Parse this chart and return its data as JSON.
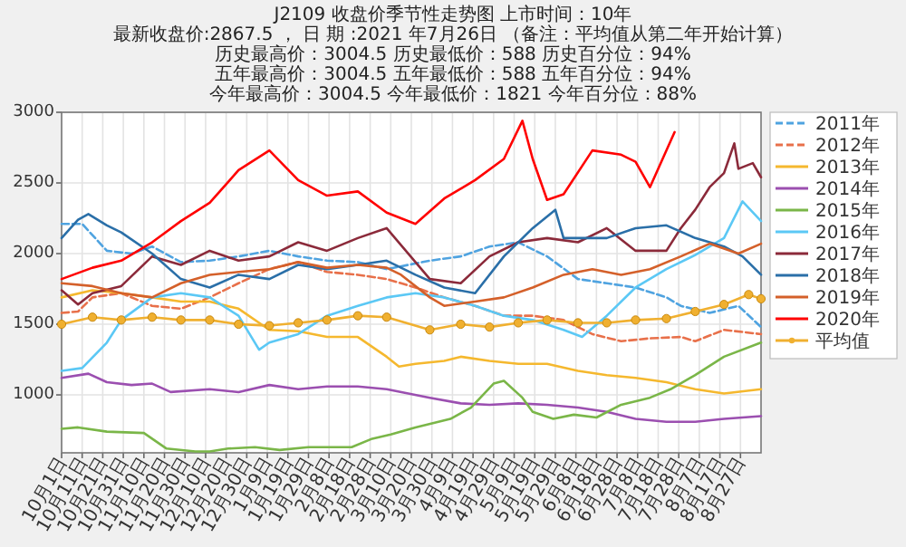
{
  "chart_data": {
    "type": "line",
    "title": "J2109   收盘价季节性走势图        上市时间：10年",
    "subtitle": "最新收盘价:2867.5 ， 日 期 :2021 年7月26日  （备注：平均值从第二年开始计算）",
    "annotations": [
      "历史最高价：3004.5 历史最低价：588 历史百分位：94%",
      "五年最高价：3004.5 五年最低价：588 五年百分位：94%",
      "今年最高价：3004.5 今年最低价：1821 今年百分位：88%"
    ],
    "xlim": [
      "2020-10-01",
      "2021-09-06"
    ],
    "xticks": [
      {
        "value": "2020-10-01",
        "label": "10月1日"
      },
      {
        "value": "2020-10-11",
        "label": "10月11日"
      },
      {
        "value": "2020-10-21",
        "label": "10月21日"
      },
      {
        "value": "2020-10-31",
        "label": "10月31日"
      },
      {
        "value": "2020-11-10",
        "label": "11月10日"
      },
      {
        "value": "2020-11-20",
        "label": "11月20日"
      },
      {
        "value": "2020-11-30",
        "label": "11月30日"
      },
      {
        "value": "2020-12-10",
        "label": "12月10日"
      },
      {
        "value": "2020-12-20",
        "label": "12月20日"
      },
      {
        "value": "2020-12-30",
        "label": "12月30日"
      },
      {
        "value": "2021-01-09",
        "label": "1月9日"
      },
      {
        "value": "2021-01-19",
        "label": "1月19日"
      },
      {
        "value": "2021-01-29",
        "label": "1月29日"
      },
      {
        "value": "2021-02-08",
        "label": "2月8日"
      },
      {
        "value": "2021-02-18",
        "label": "2月18日"
      },
      {
        "value": "2021-02-28",
        "label": "2月28日"
      },
      {
        "value": "2021-03-10",
        "label": "3月10日"
      },
      {
        "value": "2021-03-20",
        "label": "3月20日"
      },
      {
        "value": "2021-03-30",
        "label": "3月30日"
      },
      {
        "value": "2021-04-09",
        "label": "4月9日"
      },
      {
        "value": "2021-04-19",
        "label": "4月19日"
      },
      {
        "value": "2021-04-29",
        "label": "4月29日"
      },
      {
        "value": "2021-05-09",
        "label": "5月9日"
      },
      {
        "value": "2021-05-19",
        "label": "5月19日"
      },
      {
        "value": "2021-05-29",
        "label": "5月29日"
      },
      {
        "value": "2021-06-08",
        "label": "6月8日"
      },
      {
        "value": "2021-06-18",
        "label": "6月18日"
      },
      {
        "value": "2021-06-28",
        "label": "6月28日"
      },
      {
        "value": "2021-07-08",
        "label": "7月8日"
      },
      {
        "value": "2021-07-18",
        "label": "7月18日"
      },
      {
        "value": "2021-07-28",
        "label": "7月28日"
      },
      {
        "value": "2021-08-07",
        "label": "8月7日"
      },
      {
        "value": "2021-08-17",
        "label": "8月17日"
      },
      {
        "value": "2021-08-27",
        "label": "8月27日"
      }
    ],
    "ylim": [
      590,
      3000
    ],
    "yticks": [
      1000,
      1500,
      2000,
      2500,
      3000
    ],
    "grid": true,
    "legend": "right",
    "series": [
      {
        "name": "2011年",
        "color": "#4fa3e0",
        "line_style": "dashed",
        "x": [
          "2020-10-01",
          "2020-10-11",
          "2020-10-23",
          "2020-11-04",
          "2020-11-14",
          "2020-11-28",
          "2020-12-12",
          "2020-12-26",
          "2021-01-10",
          "2021-01-24",
          "2021-02-07",
          "2021-02-22",
          "2021-03-08",
          "2021-03-29",
          "2021-04-13",
          "2021-04-27",
          "2021-05-11",
          "2021-05-25",
          "2021-06-09",
          "2021-06-23",
          "2021-07-07",
          "2021-07-22",
          "2021-07-29",
          "2021-08-12",
          "2021-08-26",
          "2021-09-06"
        ],
        "values": [
          2210,
          2210,
          2020,
          2000,
          2050,
          1940,
          1950,
          1980,
          2020,
          1980,
          1950,
          1940,
          1890,
          1950,
          1980,
          2050,
          2080,
          1980,
          1820,
          1790,
          1760,
          1690,
          1630,
          1580,
          1630,
          1480
        ]
      },
      {
        "name": "2012年",
        "color": "#e8704a",
        "line_style": "dashed",
        "x": [
          "2020-10-01",
          "2020-10-09",
          "2020-10-16",
          "2020-10-30",
          "2020-11-14",
          "2020-11-28",
          "2020-12-12",
          "2020-12-26",
          "2021-01-10",
          "2021-01-24",
          "2021-02-07",
          "2021-02-22",
          "2021-03-08",
          "2021-03-22",
          "2021-04-05",
          "2021-04-20",
          "2021-05-04",
          "2021-05-18",
          "2021-06-02",
          "2021-06-16",
          "2021-06-30",
          "2021-07-14",
          "2021-07-29",
          "2021-08-05",
          "2021-08-19",
          "2021-09-06"
        ],
        "values": [
          1580,
          1590,
          1690,
          1720,
          1630,
          1610,
          1690,
          1790,
          1890,
          1940,
          1870,
          1850,
          1820,
          1760,
          1690,
          1630,
          1560,
          1560,
          1530,
          1430,
          1380,
          1400,
          1410,
          1380,
          1460,
          1430
        ]
      },
      {
        "name": "2013年",
        "color": "#f5b82e",
        "line_style": "solid",
        "x": [
          "2020-10-01",
          "2020-10-16",
          "2020-10-30",
          "2020-11-14",
          "2020-11-28",
          "2020-12-12",
          "2020-12-26",
          "2021-01-10",
          "2021-01-24",
          "2021-02-07",
          "2021-02-22",
          "2021-03-08",
          "2021-03-14",
          "2021-03-22",
          "2021-04-05",
          "2021-04-13",
          "2021-04-27",
          "2021-05-11",
          "2021-05-25",
          "2021-06-09",
          "2021-06-23",
          "2021-07-07",
          "2021-07-22",
          "2021-08-05",
          "2021-08-19",
          "2021-09-06"
        ],
        "values": [
          1690,
          1740,
          1720,
          1690,
          1660,
          1660,
          1610,
          1460,
          1450,
          1410,
          1410,
          1270,
          1200,
          1220,
          1240,
          1270,
          1240,
          1220,
          1220,
          1170,
          1140,
          1120,
          1090,
          1040,
          1010,
          1040
        ]
      },
      {
        "name": "2014年",
        "color": "#9b4fb0",
        "line_style": "solid",
        "x": [
          "2020-10-01",
          "2020-10-14",
          "2020-10-23",
          "2020-11-04",
          "2020-11-14",
          "2020-11-23",
          "2020-12-12",
          "2020-12-26",
          "2021-01-10",
          "2021-01-24",
          "2021-02-07",
          "2021-02-22",
          "2021-03-08",
          "2021-03-29",
          "2021-04-13",
          "2021-04-27",
          "2021-05-11",
          "2021-05-25",
          "2021-06-09",
          "2021-06-23",
          "2021-07-07",
          "2021-07-22",
          "2021-08-05",
          "2021-08-19",
          "2021-09-06"
        ],
        "values": [
          1120,
          1150,
          1090,
          1070,
          1080,
          1020,
          1040,
          1020,
          1070,
          1040,
          1060,
          1060,
          1040,
          980,
          940,
          930,
          940,
          930,
          910,
          880,
          830,
          810,
          810,
          830,
          850
        ]
      },
      {
        "name": "2015年",
        "color": "#7ab648",
        "line_style": "solid",
        "x": [
          "2020-10-01",
          "2020-10-09",
          "2020-10-23",
          "2020-11-10",
          "2020-11-21",
          "2020-12-05",
          "2020-12-12",
          "2020-12-21",
          "2021-01-03",
          "2021-01-15",
          "2021-01-29",
          "2021-02-19",
          "2021-03-01",
          "2021-03-10",
          "2021-03-22",
          "2021-04-08",
          "2021-04-18",
          "2021-04-29",
          "2021-05-04",
          "2021-05-13",
          "2021-05-18",
          "2021-05-28",
          "2021-06-07",
          "2021-06-18",
          "2021-06-30",
          "2021-07-14",
          "2021-07-24",
          "2021-08-05",
          "2021-08-19",
          "2021-09-06"
        ],
        "values": [
          760,
          770,
          740,
          730,
          620,
          600,
          600,
          620,
          630,
          610,
          630,
          630,
          690,
          720,
          770,
          830,
          910,
          1080,
          1100,
          980,
          880,
          830,
          860,
          840,
          930,
          980,
          1040,
          1140,
          1270,
          1370
        ]
      },
      {
        "name": "2016年",
        "color": "#5bc8f5",
        "line_style": "solid",
        "x": [
          "2020-10-01",
          "2020-10-11",
          "2020-10-23",
          "2020-10-30",
          "2020-11-14",
          "2020-11-28",
          "2020-12-12",
          "2020-12-26",
          "2021-01-05",
          "2021-01-10",
          "2021-01-24",
          "2021-02-07",
          "2021-02-22",
          "2021-03-08",
          "2021-03-22",
          "2021-04-05",
          "2021-04-20",
          "2021-05-04",
          "2021-05-18",
          "2021-06-02",
          "2021-06-11",
          "2021-06-23",
          "2021-07-07",
          "2021-07-22",
          "2021-08-05",
          "2021-08-19",
          "2021-08-28",
          "2021-09-06"
        ],
        "values": [
          1170,
          1190,
          1370,
          1530,
          1690,
          1720,
          1690,
          1560,
          1320,
          1370,
          1430,
          1560,
          1630,
          1690,
          1720,
          1690,
          1630,
          1560,
          1530,
          1460,
          1410,
          1560,
          1760,
          1890,
          1990,
          2110,
          2370,
          2230
        ]
      },
      {
        "name": "2017年",
        "color": "#8b2a3a",
        "line_style": "solid",
        "x": [
          "2020-10-01",
          "2020-10-09",
          "2020-10-16",
          "2020-10-30",
          "2020-11-14",
          "2020-11-28",
          "2020-12-12",
          "2020-12-26",
          "2021-01-10",
          "2021-01-24",
          "2021-02-07",
          "2021-02-22",
          "2021-03-08",
          "2021-03-29",
          "2021-04-13",
          "2021-04-27",
          "2021-05-11",
          "2021-05-25",
          "2021-06-09",
          "2021-06-23",
          "2021-07-07",
          "2021-07-22",
          "2021-07-29",
          "2021-08-05",
          "2021-08-12",
          "2021-08-19",
          "2021-08-24",
          "2021-08-26",
          "2021-09-02",
          "2021-09-06"
        ],
        "values": [
          1740,
          1640,
          1720,
          1770,
          1980,
          1920,
          2020,
          1950,
          1980,
          2080,
          2020,
          2110,
          2180,
          1820,
          1790,
          1980,
          2080,
          2110,
          2080,
          2180,
          2020,
          2020,
          2180,
          2310,
          2470,
          2570,
          2780,
          2600,
          2640,
          2540
        ]
      },
      {
        "name": "2018年",
        "color": "#2a6fa8",
        "line_style": "solid",
        "x": [
          "2020-10-01",
          "2020-10-09",
          "2020-10-14",
          "2020-10-23",
          "2020-10-30",
          "2020-11-14",
          "2020-11-28",
          "2020-12-12",
          "2020-12-26",
          "2021-01-10",
          "2021-01-24",
          "2021-02-07",
          "2021-02-22",
          "2021-03-08",
          "2021-03-22",
          "2021-04-05",
          "2021-04-20",
          "2021-05-04",
          "2021-05-18",
          "2021-05-29",
          "2021-06-02",
          "2021-06-23",
          "2021-07-07",
          "2021-07-22",
          "2021-08-05",
          "2021-08-19",
          "2021-08-28",
          "2021-09-06"
        ],
        "values": [
          2110,
          2240,
          2280,
          2200,
          2150,
          2000,
          1820,
          1760,
          1850,
          1820,
          1920,
          1890,
          1920,
          1950,
          1850,
          1760,
          1720,
          1980,
          2180,
          2310,
          2110,
          2110,
          2180,
          2200,
          2110,
          2050,
          1980,
          1850
        ]
      },
      {
        "name": "2019年",
        "color": "#d4602a",
        "line_style": "solid",
        "x": [
          "2020-10-01",
          "2020-10-16",
          "2020-10-30",
          "2020-11-14",
          "2020-11-28",
          "2020-12-12",
          "2020-12-26",
          "2021-01-10",
          "2021-01-24",
          "2021-02-07",
          "2021-02-22",
          "2021-03-08",
          "2021-03-15",
          "2021-03-29",
          "2021-04-05",
          "2021-04-20",
          "2021-05-04",
          "2021-05-18",
          "2021-06-02",
          "2021-06-16",
          "2021-06-30",
          "2021-07-14",
          "2021-07-29",
          "2021-08-12",
          "2021-08-26",
          "2021-09-06"
        ],
        "values": [
          1790,
          1770,
          1720,
          1690,
          1790,
          1850,
          1870,
          1890,
          1940,
          1900,
          1920,
          1900,
          1850,
          1690,
          1630,
          1660,
          1690,
          1760,
          1850,
          1890,
          1850,
          1890,
          1980,
          2070,
          2000,
          2070
        ]
      },
      {
        "name": "2020年",
        "color": "#ff0000",
        "line_style": "solid",
        "x": [
          "2020-10-01",
          "2020-10-16",
          "2020-10-30",
          "2020-11-14",
          "2020-11-28",
          "2020-12-12",
          "2020-12-26",
          "2021-01-10",
          "2021-01-24",
          "2021-02-07",
          "2021-02-22",
          "2021-03-08",
          "2021-03-22",
          "2021-04-05",
          "2021-04-20",
          "2021-05-04",
          "2021-05-13",
          "2021-05-18",
          "2021-05-25",
          "2021-06-02",
          "2021-06-16",
          "2021-06-30",
          "2021-07-07",
          "2021-07-14",
          "2021-07-26"
        ],
        "values": [
          1820,
          1900,
          1950,
          2080,
          2230,
          2360,
          2590,
          2730,
          2520,
          2410,
          2440,
          2290,
          2210,
          2390,
          2520,
          2670,
          2940,
          2670,
          2380,
          2420,
          2730,
          2700,
          2650,
          2470,
          2860
        ]
      },
      {
        "name": "平均值",
        "color": "#f0b030",
        "line_style": "solid",
        "marker": "circle",
        "x": [
          "2020-10-01",
          "2020-10-16",
          "2020-10-30",
          "2020-11-14",
          "2020-11-28",
          "2020-12-12",
          "2020-12-26",
          "2021-01-10",
          "2021-01-24",
          "2021-02-07",
          "2021-02-22",
          "2021-03-08",
          "2021-03-29",
          "2021-04-13",
          "2021-04-27",
          "2021-05-11",
          "2021-05-25",
          "2021-06-09",
          "2021-06-23",
          "2021-07-07",
          "2021-07-22",
          "2021-08-05",
          "2021-08-19",
          "2021-08-31",
          "2021-09-06"
        ],
        "values": [
          1500,
          1550,
          1530,
          1550,
          1530,
          1530,
          1500,
          1490,
          1510,
          1530,
          1560,
          1550,
          1460,
          1500,
          1480,
          1510,
          1530,
          1510,
          1510,
          1530,
          1540,
          1590,
          1640,
          1710,
          1680
        ]
      }
    ]
  }
}
